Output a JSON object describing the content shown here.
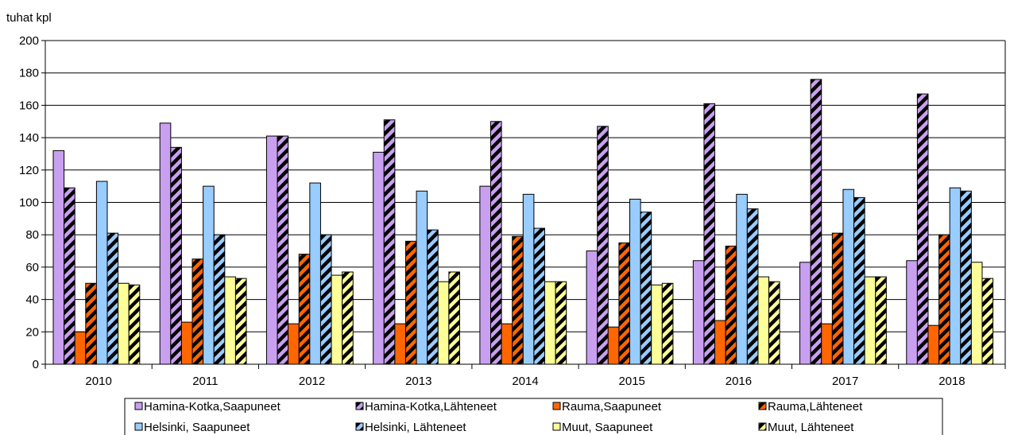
{
  "chart_data": {
    "type": "bar",
    "ylabel": "tuhat kpl",
    "ylim": [
      0,
      200
    ],
    "yticks": [
      0,
      20,
      40,
      60,
      80,
      100,
      120,
      140,
      160,
      180,
      200
    ],
    "grid": true,
    "legend_position": "bottom",
    "categories": [
      "2010",
      "2011",
      "2012",
      "2013",
      "2014",
      "2015",
      "2016",
      "2017",
      "2018"
    ],
    "series": [
      {
        "name": "Hamina-Kotka,Saapuneet",
        "color": "#c9a0f0",
        "pattern": "solid",
        "values": [
          132,
          149,
          141,
          131,
          110,
          70,
          64,
          63,
          64
        ]
      },
      {
        "name": "Hamina-Kotka,Lähteneet",
        "color": "#c9a0f0",
        "pattern": "hatch",
        "values": [
          109,
          134,
          141,
          151,
          150,
          147,
          161,
          176,
          167
        ]
      },
      {
        "name": "Rauma,Saapuneet",
        "color": "#ff6600",
        "pattern": "solid",
        "values": [
          20,
          26,
          25,
          25,
          25,
          23,
          27,
          25,
          24
        ]
      },
      {
        "name": "Rauma,Lähteneet",
        "color": "#ff6600",
        "pattern": "hatch",
        "values": [
          50,
          65,
          68,
          76,
          79,
          75,
          73,
          81,
          80
        ]
      },
      {
        "name": "Helsinki, Saapuneet",
        "color": "#99ccff",
        "pattern": "solid",
        "values": [
          113,
          110,
          112,
          107,
          105,
          102,
          105,
          108,
          109
        ]
      },
      {
        "name": "Helsinki, Lähteneet",
        "color": "#99ccff",
        "pattern": "hatch",
        "values": [
          81,
          80,
          80,
          83,
          84,
          94,
          96,
          103,
          107
        ]
      },
      {
        "name": "Muut, Saapuneet",
        "color": "#ffff99",
        "pattern": "solid",
        "values": [
          50,
          54,
          55,
          51,
          51,
          49,
          54,
          54,
          63
        ]
      },
      {
        "name": "Muut, Lähteneet",
        "color": "#ffff99",
        "pattern": "hatch",
        "values": [
          49,
          53,
          57,
          57,
          51,
          50,
          51,
          54,
          53
        ]
      }
    ]
  }
}
